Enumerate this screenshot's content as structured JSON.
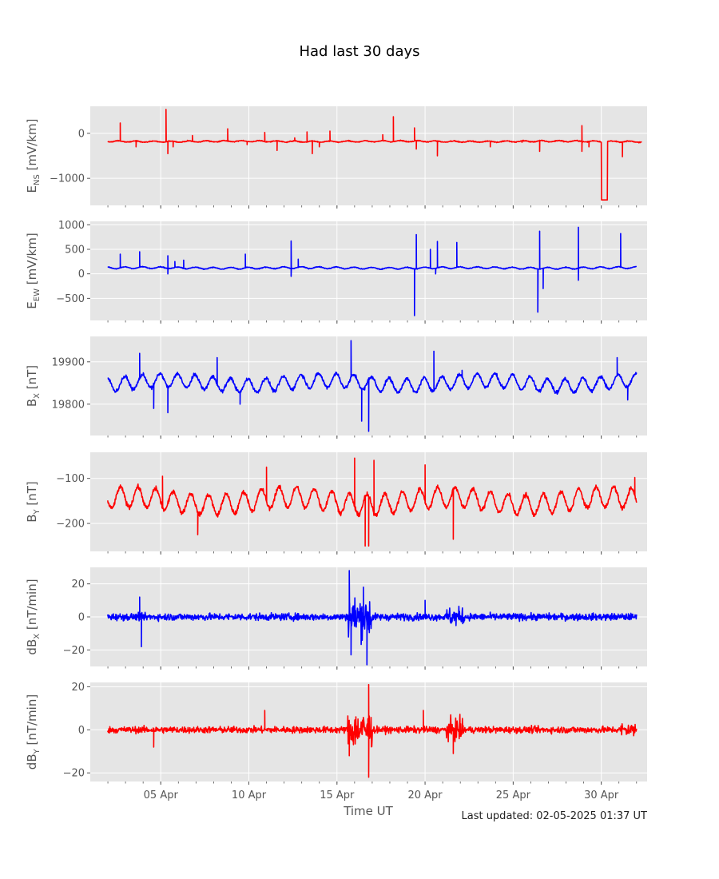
{
  "figure": {
    "title": "Had last 30 days",
    "xlabel": "Time UT",
    "last_updated": "Last updated: 02-05-2025 01:37 UT"
  },
  "chart_data": {
    "type": "line",
    "x_axis": {
      "unit": "day of April 2025",
      "range": [
        1,
        32.6
      ],
      "tick_values": [
        5,
        10,
        15,
        20,
        25,
        30
      ],
      "tick_labels": [
        "05 Apr",
        "10 Apr",
        "15 Apr",
        "20 Apr",
        "25 Apr",
        "30 Apr"
      ],
      "minor_tick_values": [
        2,
        3,
        4,
        5,
        6,
        7,
        8,
        9,
        10,
        11,
        12,
        13,
        14,
        15,
        16,
        17,
        18,
        19,
        20,
        21,
        22,
        23,
        24,
        25,
        26,
        27,
        28,
        29,
        30,
        31,
        32
      ]
    },
    "grid": true,
    "panels": [
      {
        "ylabel_main": "E",
        "ylabel_sub": "NS",
        "ylabel_unit": " [mV/km]",
        "color": "#ff0000",
        "ylim": [
          -1600,
          600
        ],
        "yticks": [
          -1000,
          0
        ],
        "ytick_labels": [
          "−1000",
          "0"
        ],
        "baseline": -180,
        "noise": 12,
        "wander": 15,
        "x": [
          1.99,
          32.3
        ],
        "spikes": [
          {
            "x": 2.7,
            "v": 230
          },
          {
            "x": 3.6,
            "v": -300
          },
          {
            "x": 5.3,
            "v": 530
          },
          {
            "x": 5.4,
            "v": -450
          },
          {
            "x": 5.7,
            "v": -300
          },
          {
            "x": 6.8,
            "v": -50
          },
          {
            "x": 8.8,
            "v": 100
          },
          {
            "x": 9.9,
            "v": -250
          },
          {
            "x": 10.9,
            "v": 20
          },
          {
            "x": 11.6,
            "v": -380
          },
          {
            "x": 12.6,
            "v": -100
          },
          {
            "x": 13.3,
            "v": 30
          },
          {
            "x": 13.6,
            "v": -450
          },
          {
            "x": 14.0,
            "v": -300
          },
          {
            "x": 14.6,
            "v": 50
          },
          {
            "x": 17.6,
            "v": -30
          },
          {
            "x": 18.2,
            "v": 370
          },
          {
            "x": 19.4,
            "v": 120
          },
          {
            "x": 19.5,
            "v": -350
          },
          {
            "x": 20.7,
            "v": -500
          },
          {
            "x": 23.7,
            "v": -300
          },
          {
            "x": 25.5,
            "v": -200
          },
          {
            "x": 26.5,
            "v": -400
          },
          {
            "x": 28.9,
            "v": 170
          },
          {
            "x": 28.9,
            "v": -400
          },
          {
            "x": 29.3,
            "v": -300
          },
          {
            "x": 31.2,
            "v": -520
          }
        ],
        "steps": [
          {
            "x0": 30.0,
            "x1": 30.35,
            "v": -1480
          }
        ]
      },
      {
        "ylabel_main": "E",
        "ylabel_sub": "EW",
        "ylabel_unit": " [mV/km]",
        "color": "#0000ff",
        "ylim": [
          -950,
          1070
        ],
        "yticks": [
          -500,
          0,
          500,
          1000
        ],
        "ytick_labels": [
          "−500",
          "0",
          "500",
          "1000"
        ],
        "baseline": 120,
        "noise": 10,
        "wander": 20,
        "x": [
          1.99,
          32.0
        ],
        "spikes": [
          {
            "x": 2.7,
            "v": 400
          },
          {
            "x": 3.8,
            "v": 450
          },
          {
            "x": 5.4,
            "v": 370
          },
          {
            "x": 5.4,
            "v": 0
          },
          {
            "x": 5.8,
            "v": 250
          },
          {
            "x": 6.3,
            "v": 280
          },
          {
            "x": 9.8,
            "v": 400
          },
          {
            "x": 12.4,
            "v": 670
          },
          {
            "x": 12.4,
            "v": -50
          },
          {
            "x": 12.8,
            "v": 300
          },
          {
            "x": 19.4,
            "v": -850
          },
          {
            "x": 19.5,
            "v": 800
          },
          {
            "x": 20.3,
            "v": 500
          },
          {
            "x": 20.6,
            "v": 0
          },
          {
            "x": 20.7,
            "v": 660
          },
          {
            "x": 21.8,
            "v": 640
          },
          {
            "x": 26.4,
            "v": -780
          },
          {
            "x": 26.5,
            "v": 870
          },
          {
            "x": 26.7,
            "v": -300
          },
          {
            "x": 28.7,
            "v": 950
          },
          {
            "x": 28.7,
            "v": -130
          },
          {
            "x": 31.1,
            "v": 820
          }
        ],
        "steps": []
      },
      {
        "ylabel_main": "B",
        "ylabel_sub": "X",
        "ylabel_unit": " [nT]",
        "color": "#0000ff",
        "ylim": [
          19726,
          19960
        ],
        "yticks": [
          19800,
          19900
        ],
        "ytick_labels": [
          "19800",
          "19900"
        ],
        "baseline": 19850,
        "noise": 5,
        "wander": 18,
        "x": [
          1.99,
          32.0
        ],
        "spikes": [
          {
            "x": 3.8,
            "v": 19920
          },
          {
            "x": 4.6,
            "v": 19790
          },
          {
            "x": 5.4,
            "v": 19780
          },
          {
            "x": 8.2,
            "v": 19910
          },
          {
            "x": 9.5,
            "v": 19800
          },
          {
            "x": 15.8,
            "v": 19950
          },
          {
            "x": 16.4,
            "v": 19760
          },
          {
            "x": 16.8,
            "v": 19736
          },
          {
            "x": 20.5,
            "v": 19925
          },
          {
            "x": 22.1,
            "v": 19880
          },
          {
            "x": 30.9,
            "v": 19910
          },
          {
            "x": 31.5,
            "v": 19810
          }
        ],
        "steps": []
      },
      {
        "ylabel_main": "B",
        "ylabel_sub": "Y",
        "ylabel_unit": " [nT]",
        "color": "#ff0000",
        "ylim": [
          -262,
          -42
        ],
        "yticks": [
          -200,
          -100
        ],
        "ytick_labels": [
          "−200",
          "−100"
        ],
        "baseline": -150,
        "noise": 6,
        "wander": 25,
        "x": [
          1.99,
          32.0
        ],
        "spikes": [
          {
            "x": 5.1,
            "v": -95
          },
          {
            "x": 7.1,
            "v": -225
          },
          {
            "x": 11.0,
            "v": -75
          },
          {
            "x": 16.0,
            "v": -55
          },
          {
            "x": 16.6,
            "v": -250
          },
          {
            "x": 16.8,
            "v": -250
          },
          {
            "x": 17.1,
            "v": -60
          },
          {
            "x": 20.0,
            "v": -70
          },
          {
            "x": 21.6,
            "v": -235
          },
          {
            "x": 31.9,
            "v": -98
          }
        ],
        "steps": []
      },
      {
        "ylabel_main": "dB",
        "ylabel_sub": "X",
        "ylabel_unit": " [nT/min]",
        "color": "#0000ff",
        "ylim": [
          -30,
          30
        ],
        "yticks": [
          -20,
          0,
          20
        ],
        "ytick_labels": [
          "−20",
          "0",
          "20"
        ],
        "baseline": 0,
        "noise": 2.5,
        "wander": 0,
        "x": [
          1.99,
          32.0
        ],
        "bursts": [
          {
            "x0": 15.6,
            "x1": 17.0,
            "amp": 12
          },
          {
            "x0": 21.2,
            "x1": 22.2,
            "amp": 4
          }
        ],
        "spikes": [
          {
            "x": 3.8,
            "v": 12
          },
          {
            "x": 3.9,
            "v": -18
          },
          {
            "x": 15.7,
            "v": 28
          },
          {
            "x": 15.8,
            "v": -23
          },
          {
            "x": 16.5,
            "v": 18
          },
          {
            "x": 16.7,
            "v": -29
          },
          {
            "x": 20.0,
            "v": 10
          }
        ],
        "steps": []
      },
      {
        "ylabel_main": "dB",
        "ylabel_sub": "Y",
        "ylabel_unit": " [nT/min]",
        "color": "#ff0000",
        "ylim": [
          -24,
          22
        ],
        "yticks": [
          -20,
          0,
          20
        ],
        "ytick_labels": [
          "−20",
          "0",
          "20"
        ],
        "baseline": 0,
        "noise": 1.8,
        "wander": 0,
        "x": [
          1.99,
          32.0
        ],
        "bursts": [
          {
            "x0": 15.6,
            "x1": 17.0,
            "amp": 8
          },
          {
            "x0": 21.2,
            "x1": 22.2,
            "amp": 4
          },
          {
            "x0": 31.1,
            "x1": 32.0,
            "amp": 2
          }
        ],
        "spikes": [
          {
            "x": 4.6,
            "v": -8
          },
          {
            "x": 10.9,
            "v": 9
          },
          {
            "x": 16.8,
            "v": 21
          },
          {
            "x": 16.8,
            "v": -22
          },
          {
            "x": 15.7,
            "v": -12
          },
          {
            "x": 19.9,
            "v": 9
          },
          {
            "x": 21.6,
            "v": -11
          }
        ],
        "steps": []
      }
    ]
  }
}
